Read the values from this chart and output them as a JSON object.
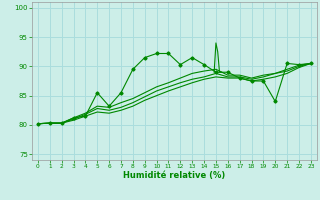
{
  "xlabel": "Humidité relative (%)",
  "bg_color": "#cceee8",
  "grid_color": "#aadddd",
  "line_color": "#008800",
  "xlim": [
    -0.5,
    23.5
  ],
  "ylim": [
    74,
    101
  ],
  "yticks": [
    75,
    80,
    85,
    90,
    95,
    100
  ],
  "xticks": [
    0,
    1,
    2,
    3,
    4,
    5,
    6,
    7,
    8,
    9,
    10,
    11,
    12,
    13,
    14,
    15,
    16,
    17,
    18,
    19,
    20,
    21,
    22,
    23
  ],
  "series0": [
    80.2,
    80.3,
    80.3,
    81.2,
    81.5,
    85.5,
    83.2,
    85.5,
    89.5,
    91.5,
    92.2,
    92.2,
    90.3,
    91.5,
    90.3,
    89.0,
    89.0,
    88.0,
    87.5,
    87.5,
    84.0,
    90.5,
    90.3,
    90.5
  ],
  "series1": [
    80.2,
    80.3,
    80.3,
    81.2,
    82.0,
    83.2,
    83.0,
    83.8,
    84.5,
    85.5,
    86.5,
    87.2,
    88.0,
    88.8,
    89.2,
    89.5,
    88.5,
    88.5,
    88.0,
    88.5,
    88.8,
    89.5,
    90.2,
    90.5
  ],
  "series2": [
    80.2,
    80.3,
    80.3,
    81.0,
    81.8,
    82.8,
    82.5,
    83.0,
    83.8,
    84.8,
    85.8,
    86.5,
    87.2,
    87.8,
    88.2,
    88.8,
    88.2,
    88.2,
    87.8,
    88.2,
    88.8,
    89.2,
    90.0,
    90.5
  ],
  "series3": [
    80.2,
    80.3,
    80.3,
    80.8,
    81.5,
    82.2,
    82.0,
    82.5,
    83.2,
    84.2,
    85.0,
    85.8,
    86.5,
    87.2,
    87.8,
    88.2,
    88.0,
    88.0,
    87.5,
    87.8,
    88.2,
    88.8,
    89.8,
    90.5
  ],
  "spike_x": [
    14.85,
    15.0,
    15.15,
    15.3,
    15.45
  ],
  "spike_y": [
    89.0,
    94.0,
    92.5,
    89.0,
    89.0
  ]
}
